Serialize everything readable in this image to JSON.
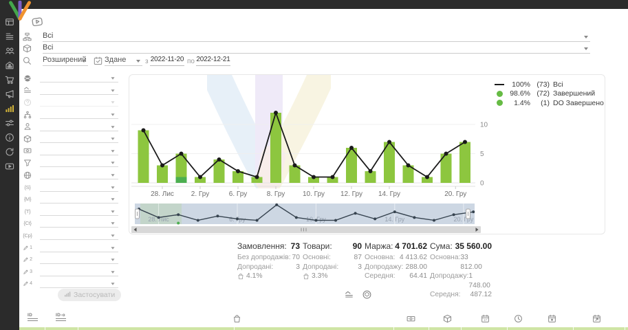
{
  "sidebar": {
    "items": [
      {
        "key": "dashboard",
        "icon": "dashboard-icon",
        "active": false
      },
      {
        "key": "orders",
        "icon": "orders-icon",
        "active": false
      },
      {
        "key": "clients",
        "icon": "clients-icon",
        "active": false
      },
      {
        "key": "warehouse",
        "icon": "warehouse-icon",
        "active": false
      },
      {
        "key": "purchases",
        "icon": "purchases-icon",
        "active": false
      },
      {
        "key": "marketing",
        "icon": "marketing-icon",
        "active": false
      },
      {
        "key": "statistics",
        "icon": "statistics-icon",
        "active": true
      },
      {
        "key": "settings",
        "icon": "settings-icon",
        "active": false
      },
      {
        "key": "info",
        "icon": "info-icon",
        "active": false
      },
      {
        "key": "sync",
        "icon": "sync-icon",
        "active": false
      },
      {
        "key": "video",
        "icon": "video-icon",
        "active": false
      }
    ]
  },
  "filters": {
    "row_category": {
      "icon": "catalog-icon",
      "value": "Всі"
    },
    "row_product": {
      "icon": "product-icon",
      "value": "Всі"
    },
    "search": {
      "icon": "search-icon",
      "mode": "Розширений"
    },
    "date": {
      "icon": "calendar-check-icon",
      "type": "Здане",
      "from_label": "з",
      "from": "2022-11-20",
      "to_label": "по",
      "to": "2022-12-21"
    },
    "rows": [
      {
        "key": "country",
        "icon": "globe-filled-icon"
      },
      {
        "key": "levels",
        "icon": "levels-icon"
      },
      {
        "key": "status",
        "icon": "question-icon",
        "disabled": true
      },
      {
        "key": "structure",
        "icon": "structure-icon"
      },
      {
        "key": "manager",
        "icon": "manager-icon"
      },
      {
        "key": "product",
        "icon": "product-icon"
      },
      {
        "key": "payment",
        "icon": "money-icon"
      },
      {
        "key": "funnel",
        "icon": "funnel-icon"
      },
      {
        "key": "website",
        "icon": "web-icon"
      },
      {
        "key": "utm-source",
        "icon": "tag-icon",
        "text": "{S}"
      },
      {
        "key": "utm-medium",
        "icon": "tag-icon",
        "text": "{M}"
      },
      {
        "key": "utm-term",
        "icon": "tag-icon",
        "text": "{T}"
      },
      {
        "key": "utm-content",
        "icon": "tag-icon",
        "text": "{Ct}"
      },
      {
        "key": "utm-campaign",
        "icon": "tag-icon",
        "text": "{Cp}"
      },
      {
        "key": "custom-1",
        "icon": "pen-icon",
        "num": "1"
      },
      {
        "key": "custom-2",
        "icon": "pen-icon",
        "num": "2"
      },
      {
        "key": "custom-3",
        "icon": "pen-icon",
        "num": "3"
      },
      {
        "key": "custom-4",
        "icon": "pen-icon",
        "num": "4"
      }
    ],
    "apply_label": "Застосувати"
  },
  "chart_data": {
    "type": "bar",
    "series": [
      {
        "name": "Завершений",
        "type": "bar",
        "values": [
          9,
          3,
          4,
          1,
          4,
          2,
          1,
          12,
          3,
          1,
          1,
          6,
          2,
          7,
          3,
          1,
          5,
          7
        ]
      },
      {
        "name": "DO Завершено",
        "type": "bar",
        "values": [
          0,
          0,
          1,
          0,
          0,
          0,
          0,
          0,
          0,
          0,
          0,
          0,
          0,
          0,
          0,
          0,
          0,
          0
        ]
      },
      {
        "name": "Всі",
        "type": "line",
        "values": [
          9,
          3,
          5,
          1,
          4,
          2,
          1,
          12,
          3,
          1,
          1,
          6,
          2,
          7,
          3,
          1,
          5,
          7
        ]
      }
    ],
    "x_tick_labels": [
      {
        "i": 1,
        "label": "28. Лис"
      },
      {
        "i": 3,
        "label": "2. Гру"
      },
      {
        "i": 5,
        "label": "6. Гру"
      },
      {
        "i": 7,
        "label": "8. Гру"
      },
      {
        "i": 9,
        "label": "10. Гру"
      },
      {
        "i": 11,
        "label": "12. Гру"
      },
      {
        "i": 13,
        "label": "14. Гру"
      },
      {
        "i": 16.5,
        "label": "20. Гру"
      }
    ],
    "yticks": [
      0,
      5,
      10
    ],
    "ylim": [
      0,
      12.5
    ],
    "legend": [
      {
        "swatch": "line",
        "pct": "100%",
        "count": "(73)",
        "label": "Всі"
      },
      {
        "swatch": "dot",
        "pct": "98.6%",
        "count": "(72)",
        "label": "Завершений"
      },
      {
        "swatch": "dot",
        "pct": "1.4%",
        "count": "(1)",
        "label": "DO Завершено"
      }
    ],
    "navigator_labels": [
      {
        "i": 1,
        "label": "28. Лис"
      },
      {
        "i": 5,
        "label": "6. Гру"
      },
      {
        "i": 9,
        "label": "10. Гру"
      },
      {
        "i": 13,
        "label": "14. Гру"
      },
      {
        "i": 16.5,
        "label": "20. Гру"
      }
    ]
  },
  "stats": {
    "blocks": [
      {
        "title": "Замовлення:",
        "value": "73",
        "rows": [
          {
            "label": "Без допродажів:",
            "value": "70"
          },
          {
            "label": "Допродані:",
            "value": "3"
          }
        ],
        "badge": {
          "icon": "bag-icon",
          "value": "4.1%"
        }
      },
      {
        "title": "Товари:",
        "value": "90",
        "rows": [
          {
            "label": "Основні:",
            "value": "87"
          },
          {
            "label": "Допродані:",
            "value": "3"
          }
        ],
        "badge": {
          "icon": "bag-icon",
          "value": "3.3%"
        }
      },
      {
        "title": "Маржа:",
        "value": "4 701.62",
        "rows": [
          {
            "label": "Основна:",
            "value": "4 413.62"
          },
          {
            "label": "Допродажу:",
            "value": "288.00"
          },
          {
            "label": "Середня:",
            "value": "64.41"
          }
        ]
      },
      {
        "title": "Сума:",
        "value": "35 560.00",
        "rows": [
          {
            "label": "Основна:",
            "value": "33 812.00"
          },
          {
            "label": "Допродажу:",
            "value": "1 748.00"
          },
          {
            "label": "Середня:",
            "value": "487.12"
          }
        ]
      }
    ]
  },
  "view_toggles": [
    {
      "key": "status-view",
      "icon": "levels-icon"
    },
    {
      "key": "product-view",
      "icon": "package-view-icon"
    }
  ],
  "footer": {
    "icons": [
      {
        "key": "group-by-id",
        "icon": "id-lines-icon",
        "label": "ID"
      },
      {
        "key": "link-id",
        "icon": "id-lines-icon",
        "label": "ID-o"
      },
      {
        "key": "bag-col",
        "icon": "bag-icon"
      },
      {
        "key": "money-col",
        "icon": "money-icon"
      },
      {
        "key": "package-col",
        "icon": "product-icon"
      },
      {
        "key": "date-col",
        "icon": "calendar-date-icon"
      },
      {
        "key": "time-col",
        "icon": "clock-icon"
      },
      {
        "key": "event-col",
        "icon": "calendar-event-icon"
      },
      {
        "key": "export-col",
        "icon": "calendar-export-icon"
      }
    ]
  },
  "colors": {
    "bar": "#8dc63f",
    "bar_dark": "#4caf50",
    "line": "#1a1a1a",
    "legend_dot": "#66bb44",
    "active_icon": "#d4b53a",
    "sidebar_icon": "#a9a9a9",
    "nav_bg": "#cdd7e3",
    "nav_line": "#36434f"
  }
}
